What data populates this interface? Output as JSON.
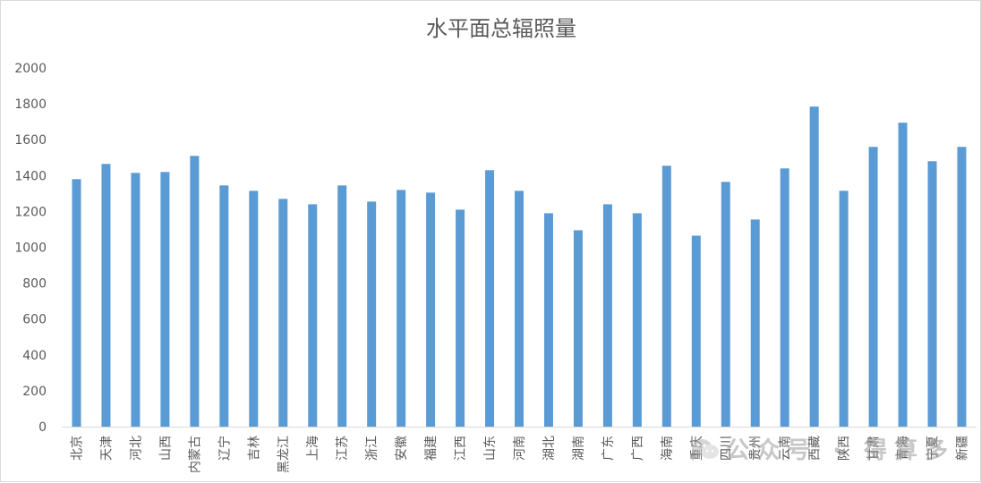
{
  "chart_data": {
    "type": "bar",
    "title": "水平面总辐照量",
    "categories": [
      "北京",
      "天津",
      "河北",
      "山西",
      "内蒙古",
      "辽宁",
      "吉林",
      "黑龙江",
      "上海",
      "江苏",
      "浙江",
      "安徽",
      "福建",
      "江西",
      "山东",
      "河南",
      "湖北",
      "湖南",
      "广东",
      "广西",
      "海南",
      "重庆",
      "四川",
      "贵州",
      "云南",
      "西藏",
      "陕西",
      "甘肃",
      "青海",
      "宁夏",
      "新疆"
    ],
    "values": [
      1380,
      1465,
      1415,
      1420,
      1510,
      1345,
      1315,
      1270,
      1240,
      1345,
      1255,
      1320,
      1305,
      1210,
      1430,
      1315,
      1190,
      1095,
      1240,
      1190,
      1455,
      1065,
      1365,
      1155,
      1440,
      1785,
      1315,
      1560,
      1695,
      1480,
      1560
    ],
    "ylim": [
      0,
      2000
    ],
    "yticks": [
      0,
      200,
      400,
      600,
      800,
      1000,
      1200,
      1400,
      1600,
      1800,
      2000
    ],
    "grid": false,
    "bar_color": "#5b9bd5",
    "axis_color": "#d9d9d9",
    "text_color": "#595959"
  },
  "watermark": {
    "text": "公众号 · 得算多",
    "icon": "wechat-icon"
  }
}
